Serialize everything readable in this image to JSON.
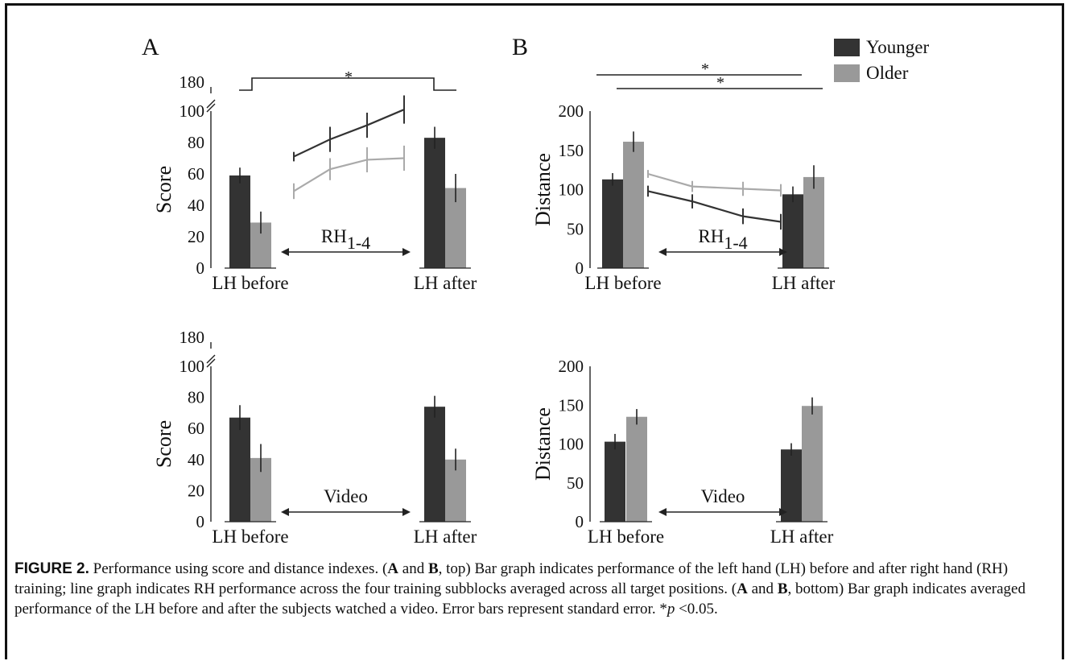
{
  "figure": {
    "panel_labels": [
      "A",
      "B"
    ],
    "legend": [
      {
        "label": "Younger",
        "color": "#333333"
      },
      {
        "label": "Older",
        "color": "#999999"
      }
    ],
    "caption": {
      "lead": "FIGURE 2.",
      "s1": " Performance using score and distance indexes. (",
      "a1": "A",
      "and1": " and ",
      "b1": "B",
      "s2": ", top) Bar graph indicates performance of the left hand (LH) before and after right hand (RH) training; line graph indicates RH performance across the four training subblocks averaged across all target positions. (",
      "a2": "A",
      "and2": " and ",
      "b2": "B",
      "s3": ", bottom) Bar graph indicates averaged performance of the LH before and after the subjects watched a video. Error bars represent standard error. *",
      "p": "p",
      "s4": " <0.05."
    }
  },
  "chart_data": [
    {
      "type": "bar",
      "panel": "A",
      "ylabel": "Score",
      "yticks": [
        "0",
        "20",
        "40",
        "60",
        "80",
        "100",
        "180"
      ],
      "ylim": [
        0,
        100
      ],
      "axis_break": true,
      "categories": [
        "LH before",
        "LH after"
      ],
      "series": [
        {
          "name": "Younger",
          "values": [
            59,
            83
          ],
          "errors": [
            5,
            7
          ]
        },
        {
          "name": "Older",
          "values": [
            29,
            51
          ],
          "errors": [
            7,
            9
          ]
        }
      ],
      "arrow_label": "RH",
      "arrow_subscript": "1-4",
      "inset_lines": [
        {
          "name": "Younger",
          "values": [
            71,
            82,
            91,
            101
          ],
          "errors": [
            3,
            8,
            8,
            9
          ]
        },
        {
          "name": "Older",
          "values": [
            49,
            63,
            69,
            70
          ],
          "errors": [
            5,
            7,
            8,
            8
          ]
        }
      ],
      "significance": [
        {
          "label": "*"
        }
      ]
    },
    {
      "type": "bar",
      "panel": "B",
      "ylabel": "Distance",
      "yticks": [
        "0",
        "50",
        "100",
        "150",
        "200"
      ],
      "ylim": [
        0,
        200
      ],
      "categories": [
        "LH before",
        "LH after"
      ],
      "series": [
        {
          "name": "Younger",
          "values": [
            113,
            94
          ],
          "errors": [
            8,
            10
          ]
        },
        {
          "name": "Older",
          "values": [
            161,
            116
          ],
          "errors": [
            13,
            15
          ]
        }
      ],
      "arrow_label": "RH",
      "arrow_subscript": "1-4",
      "inset_lines": [
        {
          "name": "Younger",
          "values": [
            98,
            85,
            66,
            59
          ],
          "errors": [
            7,
            9,
            10,
            10
          ]
        },
        {
          "name": "Older",
          "values": [
            120,
            104,
            101,
            99
          ],
          "errors": [
            5,
            7,
            9,
            8
          ]
        }
      ],
      "significance": [
        {
          "label": "*"
        },
        {
          "label": "*"
        }
      ]
    },
    {
      "type": "bar",
      "panel": "A-bottom",
      "ylabel": "Score",
      "yticks": [
        "0",
        "20",
        "40",
        "60",
        "80",
        "100",
        "180"
      ],
      "ylim": [
        0,
        100
      ],
      "axis_break": true,
      "categories": [
        "LH before",
        "LH after"
      ],
      "series": [
        {
          "name": "Younger",
          "values": [
            67,
            74
          ],
          "errors": [
            8,
            7
          ]
        },
        {
          "name": "Older",
          "values": [
            41,
            40
          ],
          "errors": [
            9,
            7
          ]
        }
      ],
      "arrow_label": "Video"
    },
    {
      "type": "bar",
      "panel": "B-bottom",
      "ylabel": "Distance",
      "yticks": [
        "0",
        "50",
        "100",
        "150",
        "200"
      ],
      "ylim": [
        0,
        200
      ],
      "categories": [
        "LH before",
        "LH after"
      ],
      "series": [
        {
          "name": "Younger",
          "values": [
            103,
            93
          ],
          "errors": [
            10,
            8
          ]
        },
        {
          "name": "Older",
          "values": [
            135,
            149
          ],
          "errors": [
            10,
            11
          ]
        }
      ],
      "arrow_label": "Video"
    }
  ]
}
